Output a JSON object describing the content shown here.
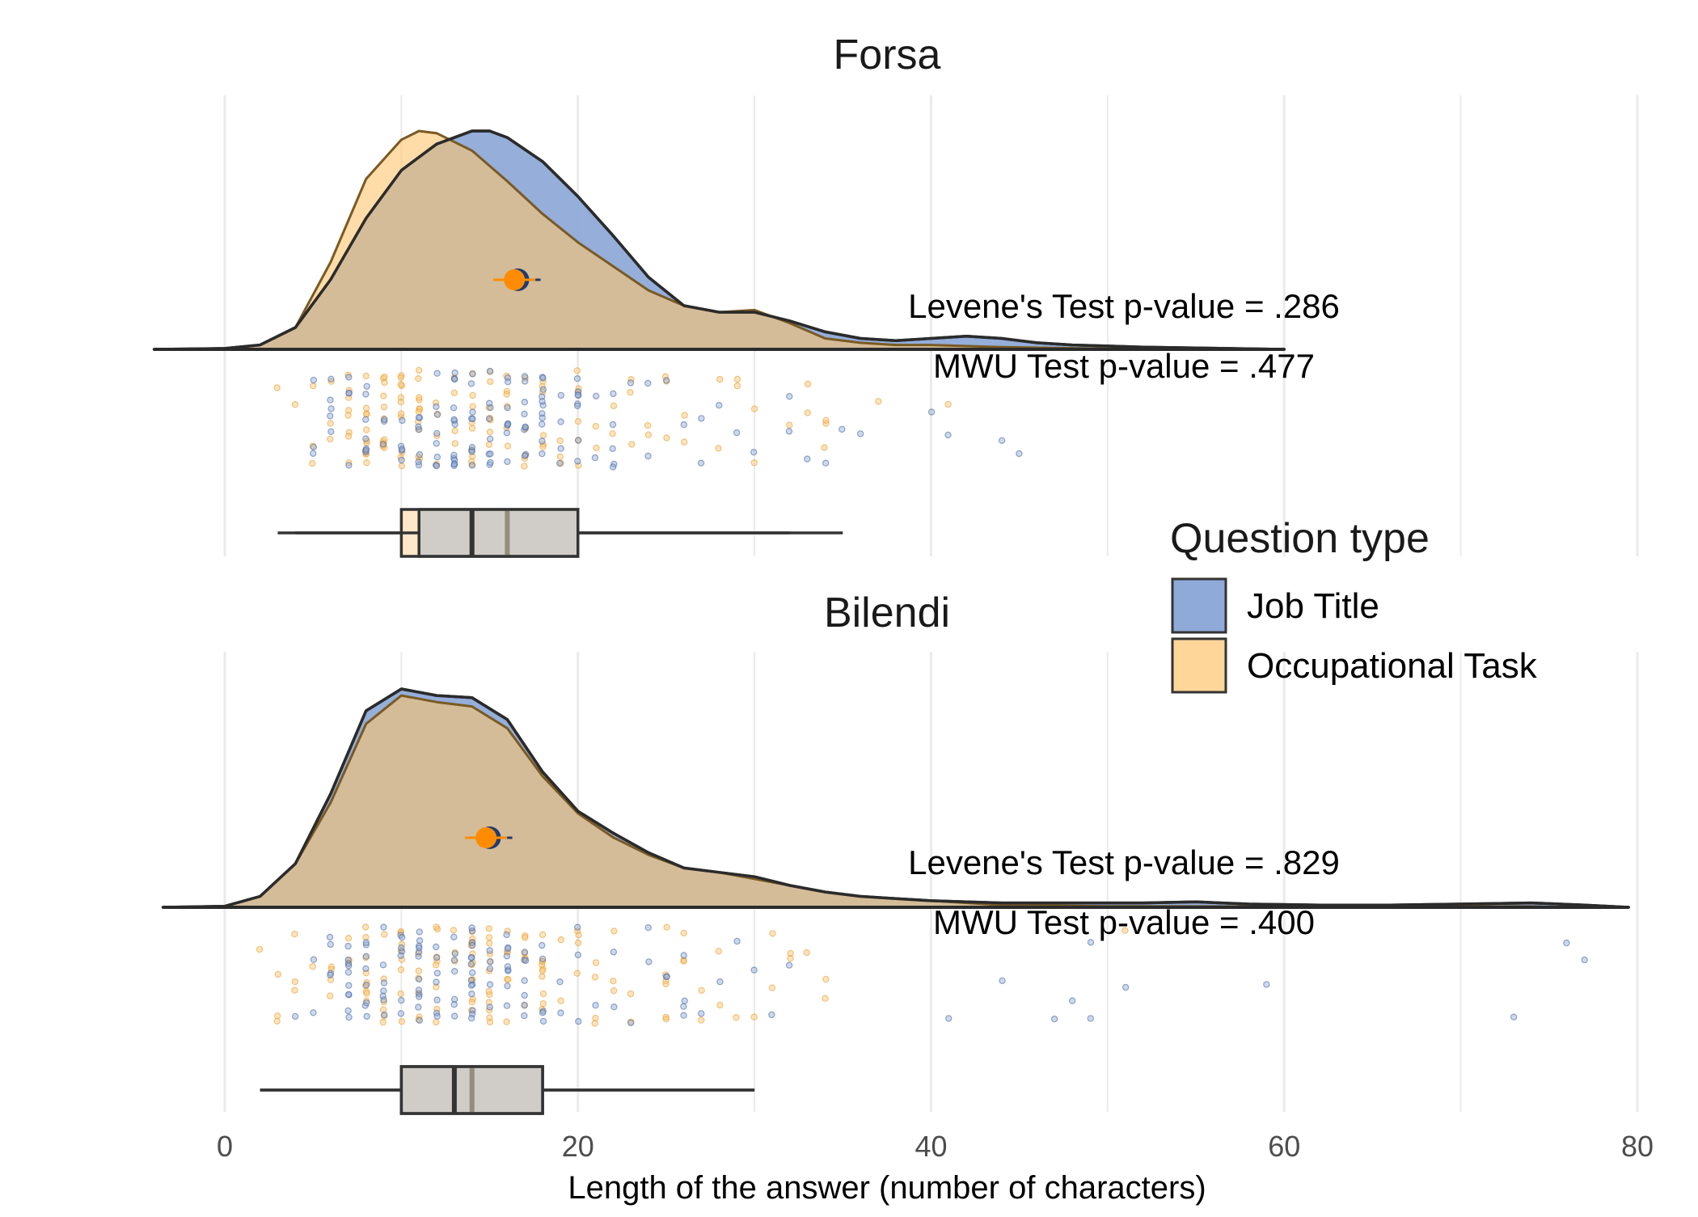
{
  "chart_data": {
    "type": "raincloud",
    "xlabel": "Length of the answer (number of characters)",
    "xlim": [
      0,
      80
    ],
    "xticks": [
      0,
      20,
      40,
      60,
      80
    ],
    "grid": true,
    "legend": {
      "title": "Question type",
      "placement": "right",
      "entries": [
        {
          "name": "Job Title",
          "color": "#8faad8"
        },
        {
          "name": "Occupational Task",
          "color": "#ffd699"
        }
      ]
    },
    "colors": {
      "job_title": "#8faad8",
      "occupational_task": "#ffd699",
      "overlap": "#c2a787",
      "mean_point": "#ff8c00",
      "mean_point_jt": "#1f3b73"
    },
    "panels": [
      {
        "title": "Forsa",
        "levene": "Levene's Test p-value = .286",
        "mwu": "MWU Test p-value = .477",
        "density_job_title": [
          [
            -4,
            0
          ],
          [
            0,
            0.004
          ],
          [
            2,
            0.02
          ],
          [
            4,
            0.1
          ],
          [
            6,
            0.32
          ],
          [
            8,
            0.6
          ],
          [
            10,
            0.82
          ],
          [
            12,
            0.94
          ],
          [
            14,
            1.0
          ],
          [
            15,
            1.0
          ],
          [
            16,
            0.97
          ],
          [
            18,
            0.86
          ],
          [
            20,
            0.7
          ],
          [
            22,
            0.52
          ],
          [
            24,
            0.33
          ],
          [
            26,
            0.2
          ],
          [
            28,
            0.17
          ],
          [
            30,
            0.17
          ],
          [
            32,
            0.13
          ],
          [
            34,
            0.08
          ],
          [
            36,
            0.05
          ],
          [
            38,
            0.04
          ],
          [
            40,
            0.05
          ],
          [
            42,
            0.06
          ],
          [
            44,
            0.05
          ],
          [
            46,
            0.03
          ],
          [
            48,
            0.02
          ],
          [
            50,
            0.015
          ],
          [
            52,
            0.01
          ],
          [
            56,
            0.005
          ],
          [
            60,
            0
          ]
        ],
        "density_occupational_task": [
          [
            -3,
            0
          ],
          [
            0,
            0.003
          ],
          [
            2,
            0.02
          ],
          [
            4,
            0.1
          ],
          [
            6,
            0.4
          ],
          [
            8,
            0.78
          ],
          [
            10,
            0.96
          ],
          [
            11,
            1.0
          ],
          [
            12,
            0.99
          ],
          [
            14,
            0.91
          ],
          [
            16,
            0.77
          ],
          [
            18,
            0.62
          ],
          [
            20,
            0.49
          ],
          [
            22,
            0.38
          ],
          [
            24,
            0.27
          ],
          [
            26,
            0.2
          ],
          [
            28,
            0.17
          ],
          [
            30,
            0.18
          ],
          [
            32,
            0.12
          ],
          [
            34,
            0.05
          ],
          [
            36,
            0.03
          ],
          [
            38,
            0.02
          ],
          [
            40,
            0.02
          ],
          [
            44,
            0.01
          ],
          [
            48,
            0.005
          ],
          [
            53,
            0
          ]
        ],
        "mean_job_title": 16.6,
        "mean_occupational_task": 16.4,
        "box_job_title": {
          "whisker_low": 4,
          "q1": 11,
          "median": 14,
          "q3": 20,
          "whisker_high": 32
        },
        "box_occupational_task": {
          "whisker_low": 3,
          "q1": 10,
          "median": 16,
          "q3": 20,
          "whisker_high": 35
        }
      },
      {
        "title": "Bilendi",
        "levene": "Levene's Test p-value = .829",
        "mwu": "MWU Test p-value = .400",
        "density_job_title": [
          [
            -3.5,
            0
          ],
          [
            0,
            0.005
          ],
          [
            2,
            0.05
          ],
          [
            4,
            0.2
          ],
          [
            6,
            0.52
          ],
          [
            8,
            0.9
          ],
          [
            10,
            1.0
          ],
          [
            12,
            0.97
          ],
          [
            14,
            0.96
          ],
          [
            16,
            0.86
          ],
          [
            18,
            0.62
          ],
          [
            20,
            0.44
          ],
          [
            22,
            0.34
          ],
          [
            24,
            0.25
          ],
          [
            26,
            0.18
          ],
          [
            28,
            0.16
          ],
          [
            30,
            0.14
          ],
          [
            32,
            0.1
          ],
          [
            34,
            0.07
          ],
          [
            36,
            0.05
          ],
          [
            38,
            0.04
          ],
          [
            40,
            0.03
          ],
          [
            44,
            0.02
          ],
          [
            48,
            0.02
          ],
          [
            52,
            0.02
          ],
          [
            55,
            0.025
          ],
          [
            58,
            0.015
          ],
          [
            62,
            0.01
          ],
          [
            66,
            0.01
          ],
          [
            70,
            0.015
          ],
          [
            74,
            0.02
          ],
          [
            77,
            0.01
          ],
          [
            79.5,
            0
          ]
        ],
        "density_occupational_task": [
          [
            -3,
            0
          ],
          [
            0,
            0.005
          ],
          [
            2,
            0.05
          ],
          [
            4,
            0.2
          ],
          [
            6,
            0.48
          ],
          [
            8,
            0.84
          ],
          [
            10,
            0.97
          ],
          [
            12,
            0.94
          ],
          [
            14,
            0.92
          ],
          [
            16,
            0.82
          ],
          [
            18,
            0.6
          ],
          [
            20,
            0.43
          ],
          [
            22,
            0.32
          ],
          [
            24,
            0.24
          ],
          [
            26,
            0.18
          ],
          [
            28,
            0.16
          ],
          [
            30,
            0.13
          ],
          [
            32,
            0.1
          ],
          [
            34,
            0.07
          ],
          [
            36,
            0.05
          ],
          [
            38,
            0.04
          ],
          [
            40,
            0.03
          ],
          [
            44,
            0.01
          ],
          [
            50,
            0.005
          ],
          [
            60,
            0.003
          ],
          [
            74,
            0.004
          ],
          [
            77,
            0
          ]
        ],
        "mean_job_title": 15.0,
        "mean_occupational_task": 14.8,
        "box_job_title": {
          "whisker_low": 2,
          "q1": 10,
          "median": 13,
          "q3": 18,
          "whisker_high": 30
        },
        "box_occupational_task": {
          "whisker_low": 2,
          "q1": 10,
          "median": 14,
          "q3": 18,
          "whisker_high": 30
        }
      }
    ]
  }
}
